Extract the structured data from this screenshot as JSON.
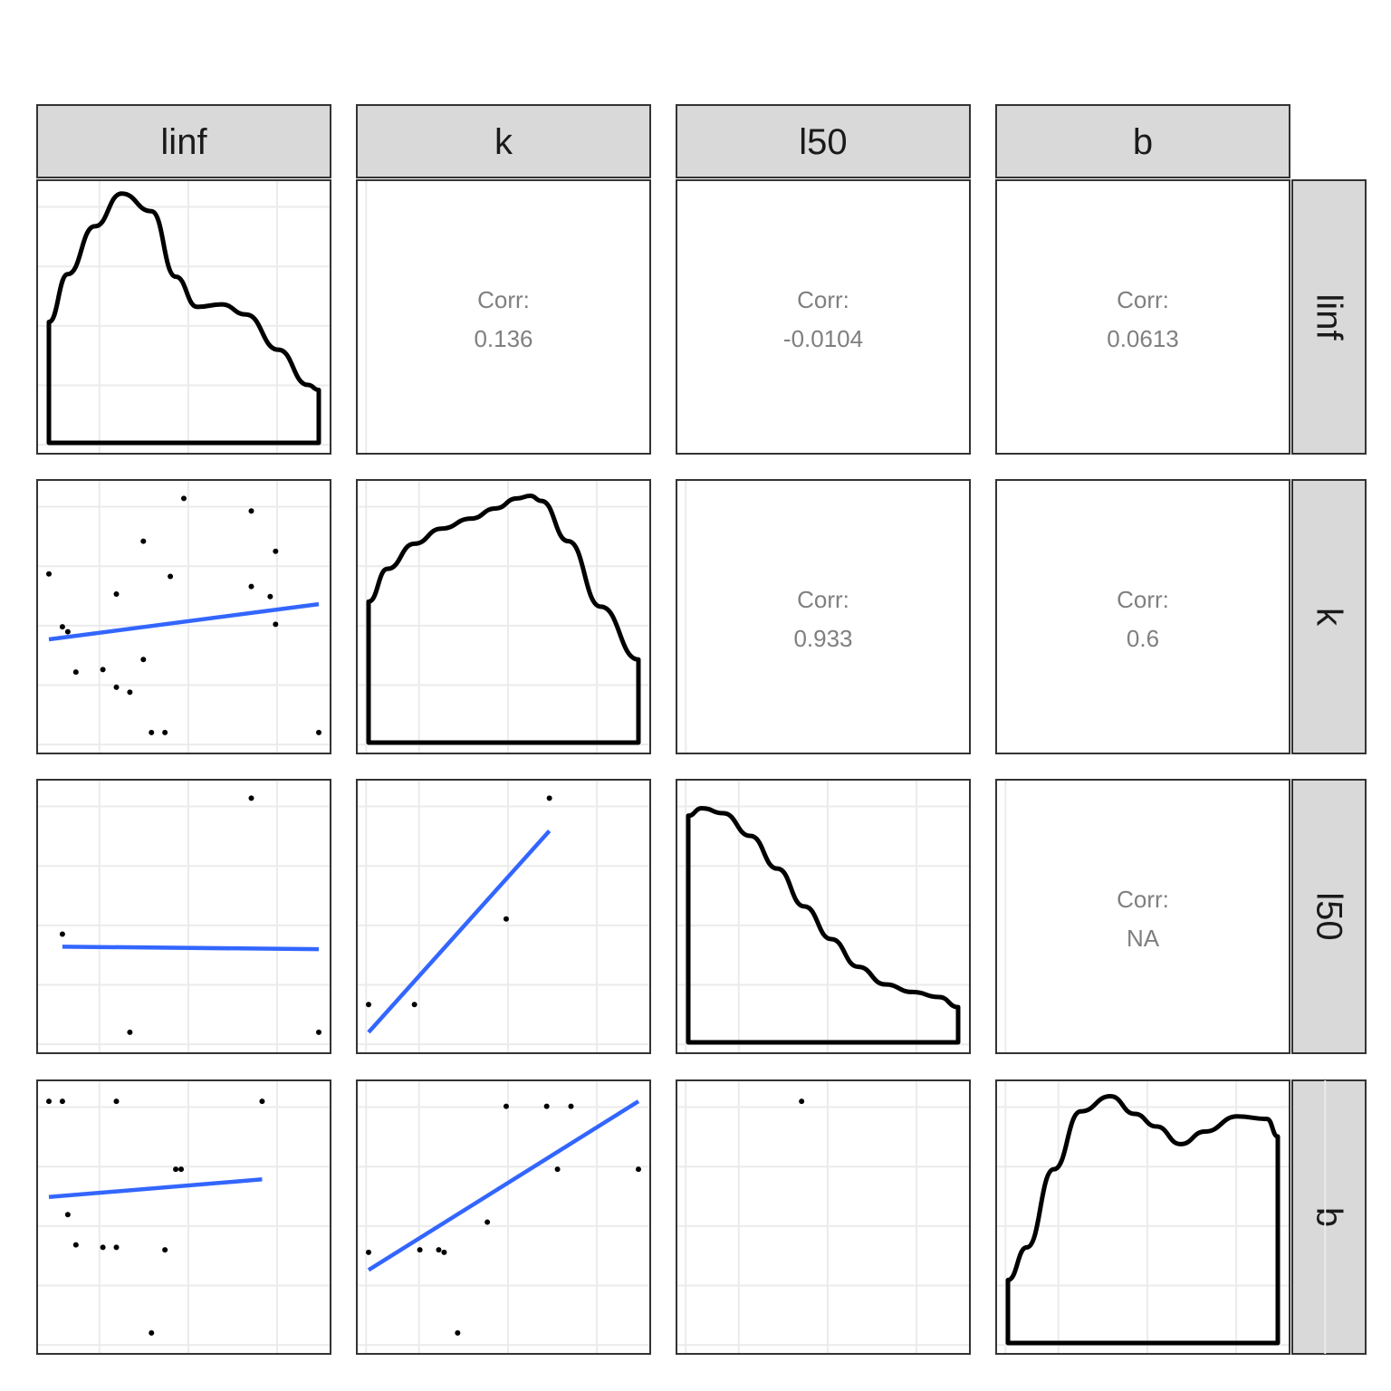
{
  "chart_data": {
    "type": "scatter",
    "kind": "pairs-matrix",
    "variables": [
      "linf",
      "k",
      "l50",
      "b"
    ],
    "colors": {
      "strip_fill": "#d9d9d9",
      "border": "#333333",
      "grid": "#ebebeb",
      "points": "#000000",
      "fit_line": "#3366ff",
      "density": "#000000",
      "corr_text": "#7f7f7f"
    },
    "correlations": [
      {
        "row": 0,
        "col": 1,
        "label": "Corr:",
        "value": "0.136"
      },
      {
        "row": 0,
        "col": 2,
        "label": "Corr:",
        "value": "-0.0104"
      },
      {
        "row": 0,
        "col": 3,
        "label": "Corr:",
        "value": "0.0613"
      },
      {
        "row": 1,
        "col": 2,
        "label": "Corr:",
        "value": "0.933"
      },
      {
        "row": 1,
        "col": 3,
        "label": "Corr:",
        "value": "0.6"
      },
      {
        "row": 2,
        "col": 3,
        "label": "Corr:",
        "value": "NA"
      }
    ],
    "densities": [
      {
        "var": "linf",
        "x": [
          0.0,
          0.07,
          0.17,
          0.27,
          0.38,
          0.47,
          0.55,
          0.64,
          0.73,
          0.85,
          0.96,
          1.0
        ],
        "y": [
          0.48,
          0.67,
          0.86,
          0.99,
          0.92,
          0.66,
          0.54,
          0.55,
          0.51,
          0.37,
          0.23,
          0.21
        ]
      },
      {
        "var": "k",
        "x": [
          0.0,
          0.07,
          0.17,
          0.27,
          0.38,
          0.47,
          0.55,
          0.6,
          0.64,
          0.74,
          0.86,
          1.0
        ],
        "y": [
          0.56,
          0.69,
          0.79,
          0.85,
          0.89,
          0.93,
          0.97,
          0.98,
          0.96,
          0.8,
          0.54,
          0.33
        ]
      },
      {
        "var": "l50",
        "x": [
          0.0,
          0.05,
          0.13,
          0.23,
          0.33,
          0.43,
          0.53,
          0.63,
          0.73,
          0.83,
          0.93,
          1.0
        ],
        "y": [
          0.9,
          0.93,
          0.91,
          0.82,
          0.69,
          0.54,
          0.41,
          0.3,
          0.23,
          0.2,
          0.18,
          0.14
        ]
      },
      {
        "var": "b",
        "x": [
          0.0,
          0.07,
          0.17,
          0.27,
          0.38,
          0.47,
          0.55,
          0.64,
          0.73,
          0.85,
          0.96,
          1.0
        ],
        "y": [
          0.25,
          0.38,
          0.69,
          0.92,
          0.98,
          0.91,
          0.86,
          0.79,
          0.84,
          0.9,
          0.89,
          0.82
        ]
      }
    ],
    "scatters": [
      {
        "row": 1,
        "col": 0,
        "points": [
          [
            0.0,
            0.67
          ],
          [
            0.05,
            0.46
          ],
          [
            0.07,
            0.44
          ],
          [
            0.1,
            0.28
          ],
          [
            0.2,
            0.29
          ],
          [
            0.25,
            0.59
          ],
          [
            0.25,
            0.22
          ],
          [
            0.3,
            0.2
          ],
          [
            0.35,
            0.8
          ],
          [
            0.35,
            0.33
          ],
          [
            0.38,
            0.04
          ],
          [
            0.43,
            0.04
          ],
          [
            0.45,
            0.66
          ],
          [
            0.5,
            0.97
          ],
          [
            0.75,
            0.92
          ],
          [
            0.75,
            0.62
          ],
          [
            0.82,
            0.58
          ],
          [
            0.84,
            0.76
          ],
          [
            0.84,
            0.47
          ],
          [
            1.0,
            0.04
          ]
        ],
        "fit": [
          [
            0.0,
            0.41
          ],
          [
            1.0,
            0.55
          ]
        ]
      },
      {
        "row": 2,
        "col": 0,
        "points": [
          [
            0.05,
            0.43
          ],
          [
            0.3,
            0.04
          ],
          [
            0.75,
            0.97
          ],
          [
            1.0,
            0.04
          ]
        ],
        "fit": [
          [
            0.05,
            0.38
          ],
          [
            1.0,
            0.37
          ]
        ]
      },
      {
        "row": 2,
        "col": 1,
        "points": [
          [
            0.0,
            0.15
          ],
          [
            0.17,
            0.15
          ],
          [
            0.51,
            0.49
          ],
          [
            0.67,
            0.97
          ]
        ],
        "fit": [
          [
            0.0,
            0.04
          ],
          [
            0.67,
            0.84
          ]
        ]
      },
      {
        "row": 3,
        "col": 0,
        "points": [
          [
            0.0,
            0.96
          ],
          [
            0.05,
            0.96
          ],
          [
            0.1,
            0.39
          ],
          [
            0.2,
            0.38
          ],
          [
            0.25,
            0.38
          ],
          [
            0.25,
            0.96
          ],
          [
            0.38,
            0.04
          ],
          [
            0.43,
            0.37
          ],
          [
            0.47,
            0.69
          ],
          [
            0.49,
            0.69
          ],
          [
            0.07,
            0.51
          ],
          [
            0.79,
            0.96
          ]
        ],
        "fit": [
          [
            0.0,
            0.58
          ],
          [
            0.79,
            0.65
          ]
        ]
      },
      {
        "row": 3,
        "col": 1,
        "points": [
          [
            0.0,
            0.36
          ],
          [
            0.19,
            0.37
          ],
          [
            0.26,
            0.37
          ],
          [
            0.28,
            0.36
          ],
          [
            0.33,
            0.04
          ],
          [
            0.44,
            0.48
          ],
          [
            0.51,
            0.94
          ],
          [
            0.66,
            0.94
          ],
          [
            0.7,
            0.69
          ],
          [
            0.75,
            0.94
          ],
          [
            1.0,
            0.69
          ]
        ],
        "fit": [
          [
            0.0,
            0.29
          ],
          [
            1.0,
            0.96
          ]
        ]
      },
      {
        "row": 3,
        "col": 2,
        "points": [
          [
            0.42,
            0.96
          ]
        ],
        "fit": []
      }
    ]
  }
}
